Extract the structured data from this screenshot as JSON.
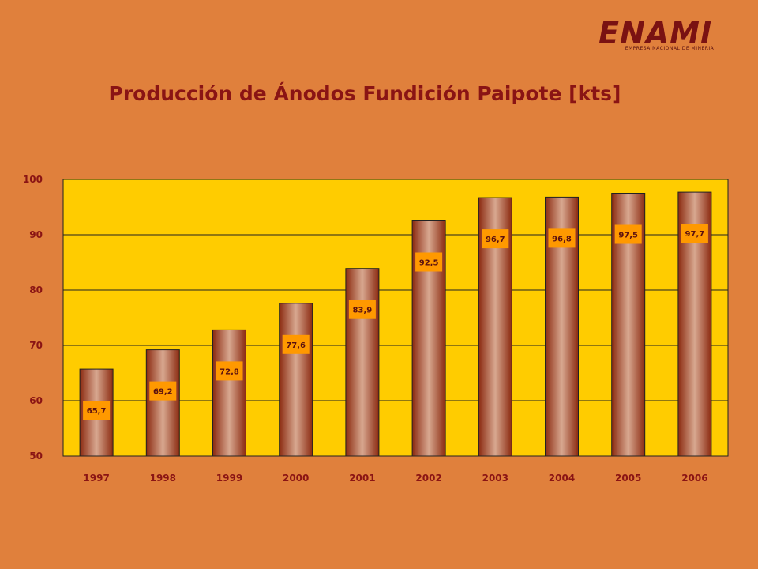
{
  "logo": {
    "name": "ENAMI",
    "subtitle": "EMPRESA NACIONAL DE MINERIA"
  },
  "colors": {
    "background": "#E0803C",
    "plot_area": "#FFCC00",
    "bar_dark": "#8B2A10",
    "bar_light": "#D8A890",
    "label_box": "#FF9900",
    "text": "#8A1414"
  },
  "chart_data": {
    "type": "bar",
    "title": "Producción de Ánodos Fundición Paipote [kts]",
    "xlabel": "",
    "ylabel": "",
    "categories": [
      "1997",
      "1998",
      "1999",
      "2000",
      "2001",
      "2002",
      "2003",
      "2004",
      "2005",
      "2006"
    ],
    "values": [
      65.7,
      69.2,
      72.8,
      77.6,
      83.9,
      92.5,
      96.7,
      96.8,
      97.5,
      97.7
    ],
    "value_labels": [
      "65,7",
      "69,2",
      "72,8",
      "77,6",
      "83,9",
      "92,5",
      "96,7",
      "96,8",
      "97,5",
      "97,7"
    ],
    "ylim": [
      50,
      100
    ],
    "yticks": [
      "50",
      "60",
      "70",
      "80",
      "90",
      "100"
    ],
    "grid": true,
    "legend": "none"
  }
}
